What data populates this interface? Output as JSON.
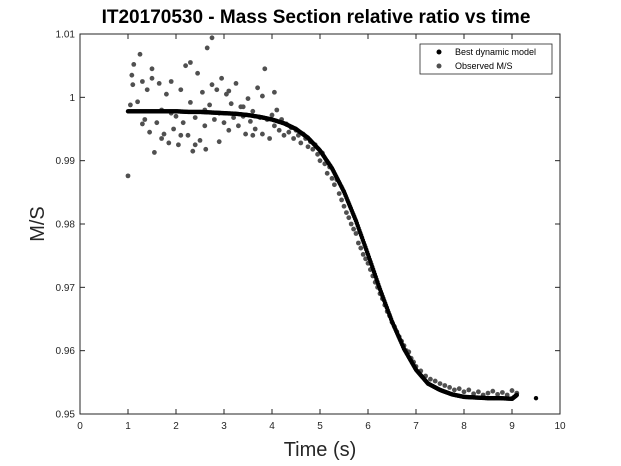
{
  "chart_data": {
    "type": "scatter",
    "title": "IT20170530 - Mass Section relative ratio vs time",
    "xlabel": "Time (s)",
    "ylabel": "M/S",
    "xlim": [
      0,
      10
    ],
    "ylim": [
      0.95,
      1.01
    ],
    "xticks": [
      0,
      1,
      2,
      3,
      4,
      5,
      6,
      7,
      8,
      9,
      10
    ],
    "xtick_labels": [
      "0",
      "1",
      "2",
      "3",
      "4",
      "5",
      "6",
      "7",
      "8",
      "9",
      "10"
    ],
    "yticks": [
      0.95,
      0.96,
      0.97,
      0.98,
      0.99,
      1.0,
      1.01
    ],
    "ytick_labels": [
      "0.95",
      "0.96",
      "0.97",
      "0.98",
      "0.99",
      "1",
      "1.01"
    ],
    "grid": false,
    "legend_location": "top-right",
    "series": [
      {
        "name": "Best dynamic model",
        "color": "#000000",
        "marker": "filled-circle",
        "x": [
          1.0,
          1.25,
          1.5,
          1.75,
          2.0,
          2.25,
          2.5,
          2.75,
          3.0,
          3.25,
          3.5,
          3.75,
          4.0,
          4.25,
          4.5,
          4.75,
          5.0,
          5.25,
          5.5,
          5.75,
          6.0,
          6.25,
          6.5,
          6.75,
          7.0,
          7.25,
          7.5,
          7.75,
          8.0,
          8.25,
          8.5,
          8.75,
          9.0,
          9.1,
          9.5
        ],
        "y": [
          0.9978,
          0.9978,
          0.9978,
          0.9978,
          0.9978,
          0.9977,
          0.9977,
          0.9976,
          0.9975,
          0.9974,
          0.9972,
          0.9969,
          0.9965,
          0.9959,
          0.995,
          0.9936,
          0.9916,
          0.9888,
          0.9851,
          0.9805,
          0.9752,
          0.9697,
          0.9646,
          0.9603,
          0.957,
          0.9548,
          0.9538,
          0.9531,
          0.9527,
          0.9526,
          0.9525,
          0.9525,
          0.9524,
          0.953,
          0.9525
        ]
      },
      {
        "name": "Observed M/S",
        "color": "#505050",
        "marker": "filled-circle",
        "x": [
          1.0,
          1.05,
          1.08,
          1.12,
          1.2,
          1.25,
          1.3,
          1.35,
          1.4,
          1.45,
          1.5,
          1.55,
          1.6,
          1.65,
          1.7,
          1.75,
          1.8,
          1.85,
          1.9,
          1.95,
          2.0,
          2.05,
          2.1,
          2.15,
          2.2,
          2.25,
          2.3,
          2.35,
          2.4,
          2.45,
          2.5,
          2.55,
          2.6,
          2.65,
          2.7,
          2.75,
          2.8,
          2.85,
          2.9,
          2.95,
          3.0,
          3.05,
          3.1,
          3.15,
          3.2,
          3.25,
          3.3,
          3.35,
          3.4,
          3.45,
          3.5,
          3.55,
          3.6,
          3.65,
          3.7,
          3.75,
          3.8,
          3.85,
          3.9,
          3.95,
          4.0,
          4.05,
          4.1,
          4.15,
          4.2,
          4.25,
          4.3,
          4.35,
          4.4,
          4.45,
          4.5,
          4.55,
          4.6,
          4.65,
          4.7,
          4.75,
          4.8,
          4.85,
          4.9,
          4.95,
          5.0,
          5.05,
          5.1,
          5.15,
          5.2,
          5.25,
          5.3,
          5.35,
          5.4,
          5.45,
          5.5,
          5.55,
          5.6,
          5.65,
          5.7,
          5.75,
          5.8,
          5.85,
          5.9,
          5.95,
          6.0,
          6.05,
          6.1,
          6.15,
          6.2,
          6.25,
          6.3,
          6.35,
          6.4,
          6.45,
          6.5,
          6.55,
          6.6,
          6.65,
          6.7,
          6.75,
          6.8,
          6.85,
          6.9,
          6.95,
          7.0,
          7.1,
          7.2,
          7.3,
          7.4,
          7.5,
          7.6,
          7.7,
          7.8,
          7.9,
          8.0,
          8.1,
          8.2,
          8.3,
          8.4,
          8.5,
          8.6,
          8.7,
          8.8,
          8.9,
          9.0,
          9.1,
          1.1,
          1.3,
          1.5,
          1.7,
          1.9,
          2.1,
          2.3,
          2.6,
          2.75,
          2.9,
          3.1,
          3.4,
          3.6,
          3.8,
          4.05,
          2.4,
          2.62
        ],
        "y": [
          0.9876,
          0.9988,
          1.0035,
          1.0052,
          0.9993,
          1.0068,
          1.0025,
          0.9965,
          1.0012,
          0.9945,
          1.0045,
          0.9913,
          0.996,
          1.0022,
          0.998,
          0.9942,
          1.0005,
          0.9928,
          0.9975,
          0.995,
          0.997,
          0.9925,
          1.0012,
          0.996,
          1.005,
          0.994,
          0.9992,
          0.9915,
          0.9968,
          1.0038,
          0.9932,
          1.0008,
          0.9955,
          1.0078,
          0.9988,
          1.0094,
          0.9965,
          1.0012,
          0.9975,
          1.003,
          0.996,
          1.0005,
          0.9948,
          0.999,
          0.9968,
          1.0022,
          0.9955,
          0.9985,
          0.997,
          0.9942,
          0.9998,
          0.9962,
          0.9978,
          0.995,
          1.0015,
          0.9968,
          0.9942,
          1.0045,
          0.9965,
          0.9935,
          0.9972,
          0.9955,
          0.998,
          0.9948,
          0.9965,
          0.994,
          0.9958,
          0.9945,
          0.9952,
          0.9935,
          0.9948,
          0.994,
          0.9928,
          0.9942,
          0.9935,
          0.9922,
          0.993,
          0.9918,
          0.9925,
          0.991,
          0.99,
          0.9912,
          0.9895,
          0.988,
          0.989,
          0.9872,
          0.9862,
          0.987,
          0.9848,
          0.9838,
          0.9828,
          0.9818,
          0.981,
          0.98,
          0.9792,
          0.9785,
          0.977,
          0.9762,
          0.9752,
          0.9745,
          0.9738,
          0.9728,
          0.9718,
          0.9708,
          0.97,
          0.969,
          0.9682,
          0.9672,
          0.9662,
          0.9655,
          0.9645,
          0.9638,
          0.963,
          0.9622,
          0.9615,
          0.9608,
          0.96,
          0.9598,
          0.9588,
          0.9582,
          0.9575,
          0.9568,
          0.956,
          0.9555,
          0.9552,
          0.9548,
          0.9545,
          0.9542,
          0.9538,
          0.954,
          0.9535,
          0.9538,
          0.9532,
          0.9535,
          0.953,
          0.9533,
          0.9536,
          0.9531,
          0.9534,
          0.953,
          0.9537,
          0.9533,
          1.002,
          0.9958,
          1.003,
          0.9935,
          1.0025,
          0.994,
          1.0055,
          0.998,
          1.002,
          0.993,
          1.001,
          0.9985,
          0.994,
          1.0002,
          1.0008,
          0.9925,
          0.9918
        ]
      }
    ]
  }
}
